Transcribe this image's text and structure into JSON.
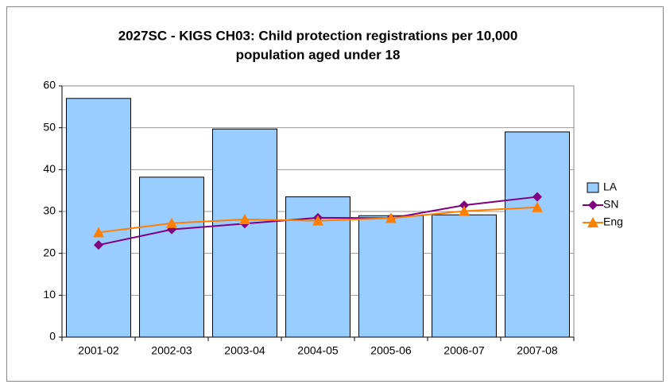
{
  "chart_data": {
    "type": "bar",
    "title": [
      "2027SC - KIGS CH03: Child protection registrations per 10,000",
      "population aged under 18"
    ],
    "categories": [
      "2001-02",
      "2002-03",
      "2003-04",
      "2004-05",
      "2005-06",
      "2006-07",
      "2007-08"
    ],
    "series": [
      {
        "name": "LA",
        "type": "bar",
        "color": "#99ccff",
        "values": [
          57,
          38.2,
          49.7,
          33.5,
          29,
          29.2,
          49
        ]
      },
      {
        "name": "SN",
        "type": "line",
        "marker": "diamond",
        "color": "#800080",
        "values": [
          22,
          25.7,
          27.1,
          28.5,
          28.4,
          31.5,
          33.5
        ]
      },
      {
        "name": "Eng",
        "type": "line",
        "marker": "triangle",
        "color": "#ff7f00",
        "values": [
          25,
          27.2,
          28.1,
          27.8,
          28.4,
          30.1,
          31
        ]
      }
    ],
    "ylim": [
      0,
      60
    ],
    "yticks": [
      0,
      10,
      20,
      30,
      40,
      50,
      60
    ],
    "grid": true,
    "legend": "right"
  }
}
